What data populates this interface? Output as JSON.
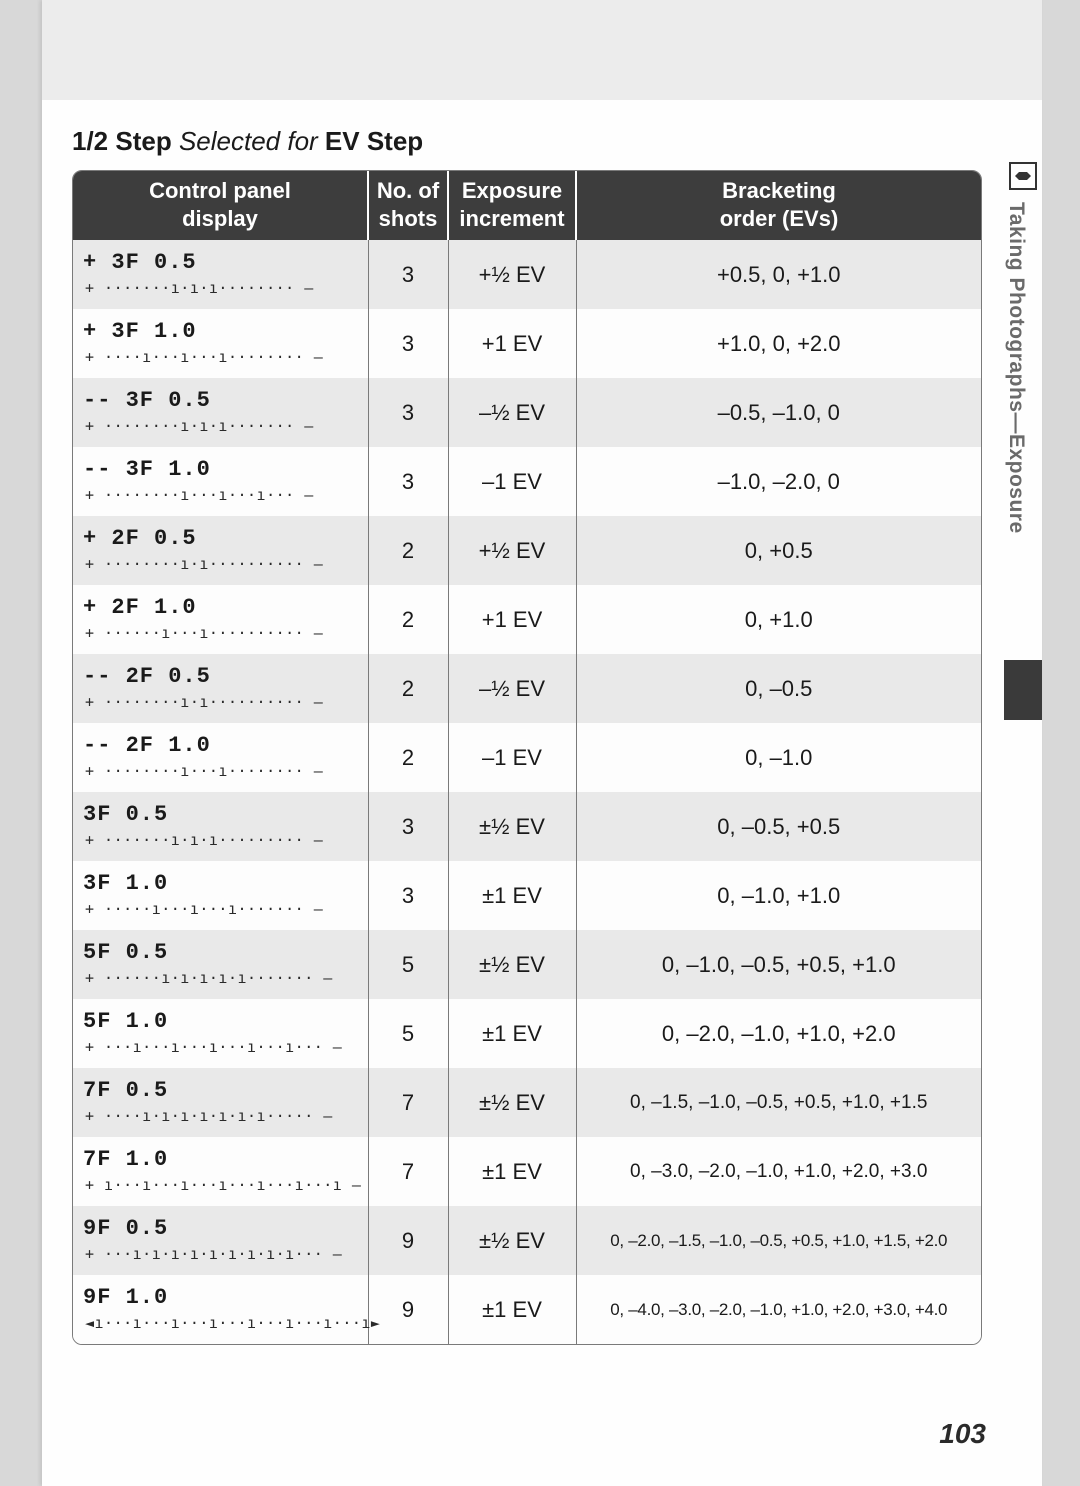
{
  "heading": {
    "prefix": "1/2 Step",
    "mid": " Selected for ",
    "suffix": "EV Step"
  },
  "pagenum": "103",
  "sidetab": "Taking Photographs—Exposure",
  "table": {
    "headers": {
      "c1a": "Control panel",
      "c1b": "display",
      "c2a": "No. of",
      "c2b": "shots",
      "c3a": "Exposure",
      "c3b": "increment",
      "c4a": "Bracketing",
      "c4b": "order (EVs)"
    },
    "rows": [
      {
        "code": "+ 3F 0.5",
        "bar": "+ ·······ı·ı·ı········ –",
        "shots": "3",
        "inc": "+½ EV",
        "order": "+0.5, 0, +1.0"
      },
      {
        "code": "+ 3F  1.0",
        "bar": "+ ····ı···ı···ı········ –",
        "shots": "3",
        "inc": "+1 EV",
        "order": "+1.0, 0, +2.0"
      },
      {
        "code": "-- 3F 0.5",
        "bar": "+ ········ı·ı·ı······· –",
        "shots": "3",
        "inc": "–½ EV",
        "order": "–0.5, –1.0, 0"
      },
      {
        "code": "-- 3F  1.0",
        "bar": "+ ········ı···ı···ı··· –",
        "shots": "3",
        "inc": "–1 EV",
        "order": "–1.0, –2.0, 0"
      },
      {
        "code": "+ 2F 0.5",
        "bar": "+ ········ı·ı·········· –",
        "shots": "2",
        "inc": "+½ EV",
        "order": "0, +0.5"
      },
      {
        "code": "+ 2F  1.0",
        "bar": "+ ······ı···ı·········· –",
        "shots": "2",
        "inc": "+1 EV",
        "order": "0, +1.0"
      },
      {
        "code": "-- 2F 0.5",
        "bar": "+ ········ı·ı·········· –",
        "shots": "2",
        "inc": "–½ EV",
        "order": "0, –0.5"
      },
      {
        "code": "-- 2F  1.0",
        "bar": "+ ········ı···ı········ –",
        "shots": "2",
        "inc": "–1 EV",
        "order": "0, –1.0"
      },
      {
        "code": "  3F 0.5",
        "bar": "+ ·······ı·ı·ı········· –",
        "shots": "3",
        "inc": "±½ EV",
        "order": "0, –0.5, +0.5"
      },
      {
        "code": "  3F  1.0",
        "bar": "+ ·····ı···ı···ı······· –",
        "shots": "3",
        "inc": "±1 EV",
        "order": "0, –1.0, +1.0"
      },
      {
        "code": "  5F 0.5",
        "bar": "+ ······ı·ı·ı·ı·ı······· –",
        "shots": "5",
        "inc": "±½ EV",
        "order": "0, –1.0, –0.5, +0.5, +1.0"
      },
      {
        "code": "  5F  1.0",
        "bar": "+ ···ı···ı···ı···ı···ı··· –",
        "shots": "5",
        "inc": "±1 EV",
        "order": "0, –2.0, –1.0, +1.0, +2.0"
      },
      {
        "code": "  7F 0.5",
        "bar": "+ ····ı·ı·ı·ı·ı·ı·ı····· –",
        "shots": "7",
        "inc": "±½ EV",
        "order": "0, –1.5, –1.0, –0.5, +0.5, +1.0, +1.5"
      },
      {
        "code": "  7F  1.0",
        "bar": "+ ı···ı···ı···ı···ı···ı···ı –",
        "shots": "7",
        "inc": "±1 EV",
        "order": "0, –3.0, –2.0, –1.0, +1.0, +2.0, +3.0"
      },
      {
        "code": "  9F 0.5",
        "bar": "+ ···ı·ı·ı·ı·ı·ı·ı·ı·ı··· –",
        "shots": "9",
        "inc": "±½ EV",
        "order": "0, –2.0, –1.5, –1.0, –0.5, +0.5, +1.0, +1.5, +2.0",
        "size": "xsmall"
      },
      {
        "code": "  9F  1.0",
        "bar": "◄ı···ı···ı···ı···ı···ı···ı···ı►",
        "shots": "9",
        "inc": "±1 EV",
        "order": "0, –4.0, –3.0, –2.0, –1.0, +1.0, +2.0, +3.0, +4.0",
        "size": "xsmall"
      }
    ]
  },
  "colors": {
    "page_bg": "#fefefe",
    "outer_bg": "#d8d8d8",
    "header_bg": "#3d3d3d",
    "header_fg": "#ffffff",
    "row_odd": "#e9e9e9",
    "row_even": "#fdfdfd",
    "border": "#7a7a7a",
    "sidetext": "#6a6a6a"
  }
}
